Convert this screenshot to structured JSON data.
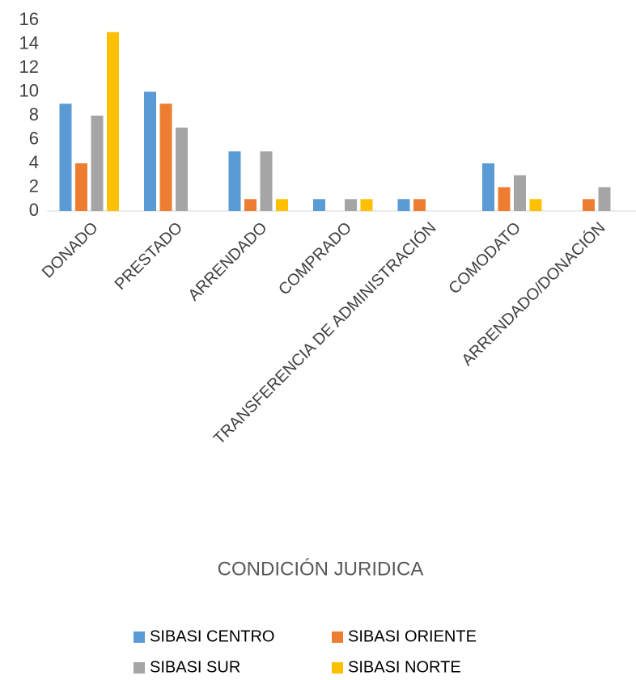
{
  "chart_data": {
    "type": "bar",
    "x_label": "CONDICIÓN JURIDICA",
    "categories": [
      "DONADO",
      "PRESTADO",
      "ARRENDADO",
      "COMPRADO",
      "TRANSFERENCIA DE ADMINISTRACIÓN",
      "COMODATO",
      "ARRENDADO/DONACIÓN"
    ],
    "series": [
      {
        "name": "SIBASI CENTRO",
        "color": "#5b9bd5",
        "values": [
          9,
          10,
          5,
          1,
          1,
          4,
          0
        ]
      },
      {
        "name": "SIBASI ORIENTE",
        "color": "#ed7d31",
        "values": [
          4,
          9,
          1,
          0,
          1,
          2,
          1
        ]
      },
      {
        "name": "SIBASI SUR",
        "color": "#a5a5a5",
        "values": [
          8,
          7,
          5,
          1,
          0,
          3,
          2
        ]
      },
      {
        "name": "SIBASI NORTE",
        "color": "#ffc000",
        "values": [
          15,
          0,
          1,
          1,
          0,
          1,
          0
        ]
      }
    ],
    "ylim": [
      0,
      16
    ],
    "yticks": [
      0,
      2,
      4,
      6,
      8,
      10,
      12,
      14,
      16
    ],
    "grid": false
  }
}
